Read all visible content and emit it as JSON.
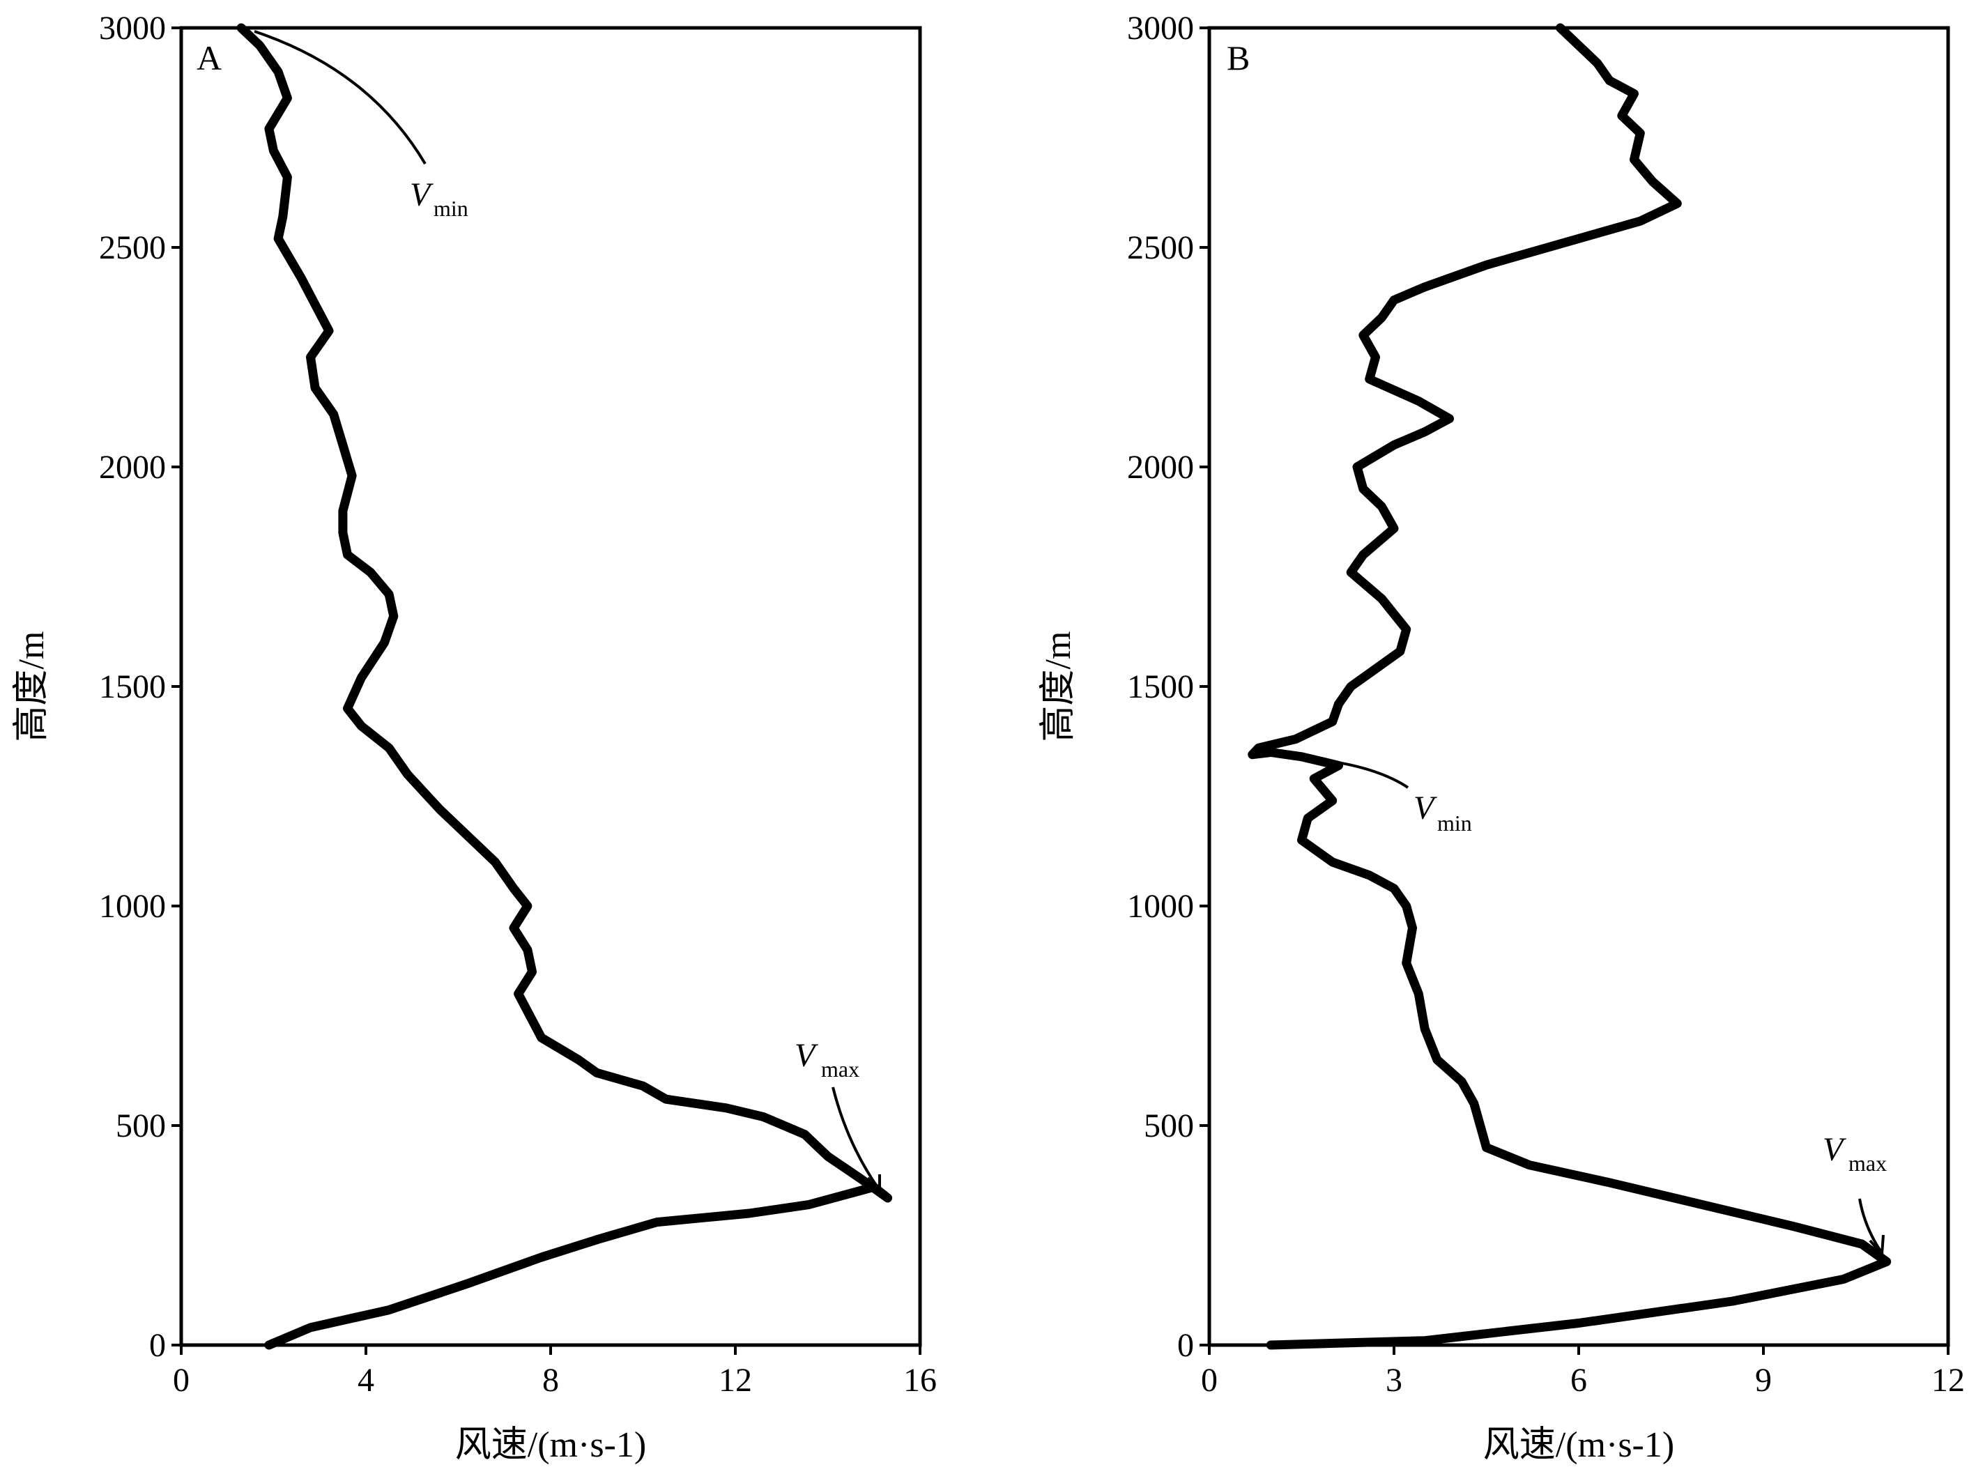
{
  "chart_data": [
    {
      "type": "line",
      "panel_label": "A",
      "xlabel": "风速/(m·s-1)",
      "ylabel": "高度/m",
      "xlim": [
        0,
        16
      ],
      "ylim": [
        0,
        3000
      ],
      "xticks": [
        "0",
        "4",
        "8",
        "12",
        "16"
      ],
      "yticks": [
        "0",
        "500",
        "1000",
        "1500",
        "2000",
        "2500",
        "3000"
      ],
      "grid": false,
      "series": [
        {
          "x": [
            1.9,
            2.8,
            4.5,
            6.2,
            7.8,
            9.0,
            10.3,
            12.3,
            13.6,
            15.0,
            15.3,
            14.7,
            14.0,
            13.5,
            12.6,
            11.8,
            10.5,
            10.0,
            9.0,
            8.6,
            7.8,
            7.5,
            7.3,
            7.6,
            7.5,
            7.2,
            7.5,
            7.2,
            6.8,
            6.2,
            5.6,
            4.9,
            4.5,
            3.9,
            3.6,
            3.9,
            4.4,
            4.6,
            4.5,
            4.1,
            3.6,
            3.5,
            3.5,
            3.7,
            3.5,
            3.3,
            2.9,
            2.8,
            3.2,
            2.9,
            2.6,
            2.1,
            2.2,
            2.3,
            2.0,
            1.9,
            2.3,
            2.1,
            1.7,
            1.3
          ],
          "y": [
            0,
            40,
            80,
            140,
            200,
            240,
            280,
            300,
            320,
            360,
            335,
            380,
            430,
            480,
            520,
            540,
            560,
            590,
            620,
            650,
            700,
            760,
            800,
            850,
            900,
            950,
            1000,
            1040,
            1100,
            1160,
            1220,
            1300,
            1360,
            1410,
            1450,
            1520,
            1600,
            1660,
            1710,
            1760,
            1800,
            1850,
            1900,
            1980,
            2050,
            2120,
            2180,
            2250,
            2310,
            2370,
            2430,
            2520,
            2570,
            2660,
            2720,
            2770,
            2840,
            2900,
            2960,
            3000
          ]
        }
      ],
      "annotations": [
        {
          "label": "V",
          "sub": "min",
          "x": 1.5,
          "y": 2985
        },
        {
          "label": "V",
          "sub": "max",
          "x": 15.2,
          "y": 345
        }
      ]
    },
    {
      "type": "line",
      "panel_label": "B",
      "xlabel": "风速/(m·s-1)",
      "ylabel": "高度/m",
      "xlim": [
        0,
        12
      ],
      "ylim": [
        0,
        3000
      ],
      "xticks": [
        "0",
        "3",
        "6",
        "9",
        "12"
      ],
      "yticks": [
        "0",
        "500",
        "1000",
        "1500",
        "2000",
        "2500",
        "3000"
      ],
      "grid": false,
      "series": [
        {
          "x": [
            1.0,
            3.5,
            6.0,
            8.5,
            10.3,
            11.0,
            10.6,
            9.5,
            8.0,
            6.5,
            5.2,
            4.5,
            4.4,
            4.3,
            4.1,
            3.7,
            3.5,
            3.4,
            3.2,
            3.3,
            3.2,
            3.0,
            2.6,
            2.0,
            1.5,
            1.6,
            2.0,
            1.7,
            2.1,
            1.5,
            1.0,
            0.7,
            0.8,
            1.4,
            2.0,
            2.1,
            2.3,
            2.7,
            3.1,
            3.2,
            2.8,
            2.3,
            2.5,
            3.0,
            2.8,
            2.5,
            2.4,
            3.0,
            3.5,
            3.9,
            3.4,
            2.6,
            2.7,
            2.5,
            2.8,
            3.0,
            3.5,
            4.5,
            6.0,
            7.0,
            7.6,
            7.2,
            6.9,
            7.0,
            6.7,
            6.9,
            6.5,
            6.3,
            6.0,
            5.7
          ],
          "y": [
            0,
            10,
            50,
            100,
            150,
            190,
            230,
            270,
            320,
            370,
            410,
            450,
            500,
            550,
            600,
            650,
            720,
            800,
            870,
            950,
            1000,
            1040,
            1070,
            1100,
            1150,
            1200,
            1240,
            1290,
            1320,
            1340,
            1350,
            1345,
            1360,
            1380,
            1420,
            1460,
            1500,
            1540,
            1580,
            1630,
            1700,
            1760,
            1800,
            1860,
            1910,
            1950,
            2000,
            2050,
            2080,
            2110,
            2150,
            2200,
            2250,
            2300,
            2340,
            2380,
            2410,
            2460,
            2520,
            2560,
            2600,
            2650,
            2700,
            2760,
            2800,
            2850,
            2880,
            2920,
            2960,
            3000
          ]
        }
      ],
      "annotations": [
        {
          "label": "V",
          "sub": "min",
          "x": 1.0,
          "y": 1340
        },
        {
          "label": "V",
          "sub": "max",
          "x": 11.0,
          "y": 200
        }
      ]
    }
  ]
}
